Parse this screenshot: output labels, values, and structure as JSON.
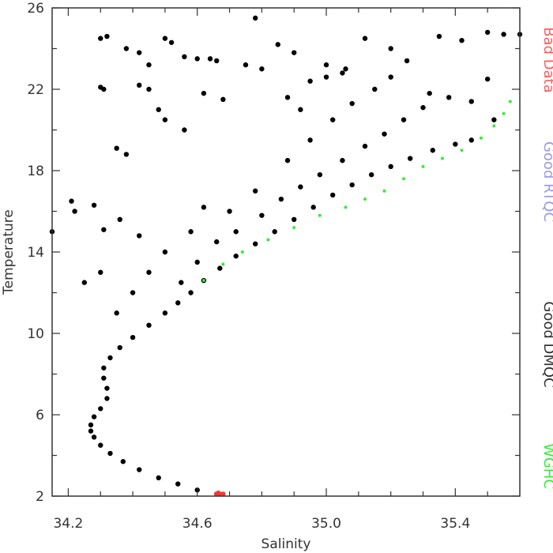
{
  "chart_data": {
    "type": "scatter",
    "xlabel": "Salinity",
    "ylabel": "Temperature",
    "xlim": [
      34.15,
      35.6
    ],
    "ylim": [
      2,
      26
    ],
    "xticks": [
      34.2,
      34.3,
      34.4,
      34.5,
      34.6,
      34.7,
      34.8,
      34.9,
      35.0,
      35.1,
      35.2,
      35.3,
      35.4,
      35.5
    ],
    "xtick_labels": [
      "34.2",
      "",
      "",
      "",
      "34.6",
      "",
      "",
      "",
      "35.0",
      "",
      "",
      "",
      "35.4",
      ""
    ],
    "yticks": [
      2,
      4,
      6,
      8,
      10,
      12,
      14,
      16,
      18,
      20,
      22,
      24,
      26
    ],
    "ytick_labels": [
      "2",
      "",
      "6",
      "",
      "10",
      "",
      "14",
      "",
      "18",
      "",
      "22",
      "",
      "26"
    ],
    "grid": false,
    "legend_position": "right, vertical",
    "series": [
      {
        "name": "Good DMQC",
        "color": "#000000",
        "points": [
          [
            34.66,
            2.1
          ],
          [
            34.6,
            2.3
          ],
          [
            34.54,
            2.6
          ],
          [
            34.48,
            2.9
          ],
          [
            34.42,
            3.3
          ],
          [
            34.37,
            3.7
          ],
          [
            34.33,
            4.1
          ],
          [
            34.3,
            4.5
          ],
          [
            34.28,
            4.9
          ],
          [
            34.27,
            5.2
          ],
          [
            34.27,
            5.5
          ],
          [
            34.28,
            5.9
          ],
          [
            34.3,
            6.3
          ],
          [
            34.32,
            6.8
          ],
          [
            34.32,
            7.3
          ],
          [
            34.31,
            7.8
          ],
          [
            34.31,
            8.3
          ],
          [
            34.33,
            8.8
          ],
          [
            34.36,
            9.3
          ],
          [
            34.4,
            9.8
          ],
          [
            34.45,
            10.4
          ],
          [
            34.5,
            11.0
          ],
          [
            34.54,
            11.5
          ],
          [
            34.58,
            12.0
          ],
          [
            34.62,
            12.6
          ],
          [
            34.67,
            13.2
          ],
          [
            34.72,
            13.8
          ],
          [
            34.78,
            14.4
          ],
          [
            34.84,
            15.0
          ],
          [
            34.9,
            15.6
          ],
          [
            34.96,
            16.2
          ],
          [
            35.02,
            16.8
          ],
          [
            35.08,
            17.3
          ],
          [
            35.14,
            17.8
          ],
          [
            35.2,
            18.2
          ],
          [
            35.26,
            18.6
          ],
          [
            35.33,
            19.0
          ],
          [
            35.4,
            19.3
          ],
          [
            34.55,
            12.5
          ],
          [
            34.6,
            13.5
          ],
          [
            34.66,
            14.5
          ],
          [
            34.72,
            15.0
          ],
          [
            34.8,
            15.8
          ],
          [
            34.86,
            16.6
          ],
          [
            34.92,
            17.2
          ],
          [
            34.98,
            17.8
          ],
          [
            35.05,
            18.5
          ],
          [
            35.12,
            19.2
          ],
          [
            35.18,
            19.8
          ],
          [
            35.24,
            20.5
          ],
          [
            35.3,
            21.1
          ],
          [
            34.7,
            16.0
          ],
          [
            34.78,
            17.0
          ],
          [
            34.88,
            18.5
          ],
          [
            34.95,
            19.5
          ],
          [
            35.02,
            20.5
          ],
          [
            35.08,
            21.3
          ],
          [
            35.15,
            22.0
          ],
          [
            35.2,
            22.6
          ],
          [
            35.0,
            22.6
          ],
          [
            35.05,
            22.8
          ],
          [
            34.95,
            22.4
          ],
          [
            34.45,
            13.0
          ],
          [
            34.5,
            14.0
          ],
          [
            34.4,
            12.0
          ],
          [
            34.35,
            11.0
          ],
          [
            34.58,
            15.0
          ],
          [
            34.62,
            16.2
          ],
          [
            34.3,
            13.0
          ],
          [
            34.25,
            12.5
          ],
          [
            34.22,
            16.0
          ],
          [
            34.21,
            16.5
          ],
          [
            34.28,
            16.3
          ],
          [
            34.36,
            15.6
          ],
          [
            34.42,
            14.8
          ],
          [
            34.3,
            24.5
          ],
          [
            34.32,
            24.6
          ],
          [
            34.38,
            24.0
          ],
          [
            34.42,
            23.8
          ],
          [
            34.45,
            23.2
          ],
          [
            34.5,
            24.5
          ],
          [
            34.52,
            24.3
          ],
          [
            34.56,
            23.6
          ],
          [
            34.6,
            23.5
          ],
          [
            34.64,
            23.5
          ],
          [
            34.66,
            23.4
          ],
          [
            34.75,
            23.2
          ],
          [
            34.8,
            23.0
          ],
          [
            34.85,
            24.2
          ],
          [
            34.78,
            25.5
          ],
          [
            34.9,
            23.8
          ],
          [
            35.0,
            23.2
          ],
          [
            35.06,
            23.0
          ],
          [
            35.12,
            24.5
          ],
          [
            35.2,
            24.0
          ],
          [
            35.25,
            23.4
          ],
          [
            35.35,
            24.6
          ],
          [
            35.42,
            24.4
          ],
          [
            35.5,
            24.8
          ],
          [
            35.55,
            24.7
          ],
          [
            35.6,
            24.7
          ],
          [
            34.3,
            22.1
          ],
          [
            34.31,
            22.0
          ],
          [
            34.42,
            22.2
          ],
          [
            34.45,
            22.0
          ],
          [
            34.48,
            21.0
          ],
          [
            34.5,
            20.5
          ],
          [
            34.56,
            20.0
          ],
          [
            34.62,
            21.8
          ],
          [
            34.68,
            21.5
          ],
          [
            34.88,
            21.6
          ],
          [
            34.92,
            21.0
          ],
          [
            35.32,
            21.8
          ],
          [
            35.38,
            21.6
          ],
          [
            35.45,
            21.4
          ],
          [
            35.5,
            22.5
          ],
          [
            35.45,
            19.5
          ],
          [
            35.52,
            20.5
          ],
          [
            34.38,
            18.8
          ],
          [
            34.35,
            19.1
          ],
          [
            34.31,
            15.1
          ],
          [
            34.15,
            15.0
          ]
        ]
      },
      {
        "name": "WGHC",
        "color": "#33ee33",
        "points": [
          [
            34.62,
            12.6
          ],
          [
            34.68,
            13.4
          ],
          [
            34.74,
            14.0
          ],
          [
            34.82,
            14.6
          ],
          [
            34.9,
            15.2
          ],
          [
            34.98,
            15.8
          ],
          [
            35.06,
            16.2
          ],
          [
            35.12,
            16.6
          ],
          [
            35.18,
            17.0
          ],
          [
            35.24,
            17.6
          ],
          [
            35.3,
            18.2
          ],
          [
            35.36,
            18.6
          ],
          [
            35.42,
            19.0
          ],
          [
            35.48,
            19.6
          ],
          [
            35.52,
            20.2
          ],
          [
            35.55,
            20.8
          ],
          [
            35.57,
            21.4
          ]
        ]
      },
      {
        "name": "Bad Data",
        "color": "#ff3333",
        "points": [
          [
            34.66,
            2.1
          ],
          [
            34.67,
            2.1
          ],
          [
            34.68,
            2.1
          ],
          [
            34.665,
            2.15
          ]
        ]
      }
    ],
    "legend": [
      {
        "label": "Bad Data",
        "color": "#ff5a5a"
      },
      {
        "label": "Good RTQC",
        "color": "#9a9ae8"
      },
      {
        "label": "Good DMQC",
        "color": "#333333"
      },
      {
        "label": "WGHC",
        "color": "#33ee33"
      }
    ]
  }
}
